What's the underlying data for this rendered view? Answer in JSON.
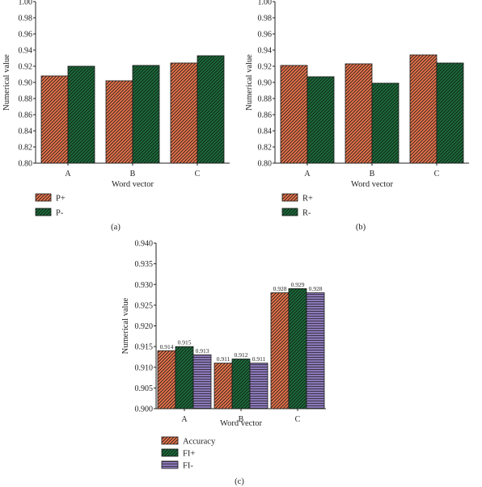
{
  "chart_data": [
    {
      "type": "bar",
      "panel_label": "(a)",
      "categories": [
        "A",
        "B",
        "C"
      ],
      "series": [
        {
          "name": "P+",
          "values": [
            0.908,
            0.902,
            0.924
          ],
          "color": "#e8734a",
          "pattern": "diagonal-hatch"
        },
        {
          "name": "P-",
          "values": [
            0.92,
            0.921,
            0.933
          ],
          "color": "#1e6b3c",
          "pattern": "diagonal-hatch"
        }
      ],
      "xlabel": "Word vector",
      "ylabel": "Numerical value",
      "ylim": [
        0.8,
        1.0
      ],
      "yticks": [
        "0.80",
        "0.82",
        "0.84",
        "0.86",
        "0.88",
        "0.90",
        "0.92",
        "0.94",
        "0.96",
        "0.98",
        "1.00"
      ],
      "legend_position": "bottom-left"
    },
    {
      "type": "bar",
      "panel_label": "(b)",
      "categories": [
        "A",
        "B",
        "C"
      ],
      "series": [
        {
          "name": "R+",
          "values": [
            0.921,
            0.923,
            0.934
          ],
          "color": "#e8734a",
          "pattern": "diagonal-hatch"
        },
        {
          "name": "R-",
          "values": [
            0.907,
            0.899,
            0.924
          ],
          "color": "#1e6b3c",
          "pattern": "diagonal-hatch"
        }
      ],
      "xlabel": "Word vector",
      "ylabel": "Numerical value",
      "ylim": [
        0.8,
        1.0
      ],
      "yticks": [
        "0.80",
        "0.82",
        "0.84",
        "0.86",
        "0.88",
        "0.90",
        "0.92",
        "0.94",
        "0.96",
        "0.98",
        "1.00"
      ],
      "legend_position": "bottom-left"
    },
    {
      "type": "bar",
      "panel_label": "(c)",
      "categories": [
        "A",
        "B",
        "C"
      ],
      "series": [
        {
          "name": "Accuracy",
          "values": [
            0.914,
            0.911,
            0.928
          ],
          "labels": [
            "0.914",
            "0.911",
            "0.928"
          ],
          "color": "#e8734a",
          "pattern": "diagonal-hatch"
        },
        {
          "name": "FI+",
          "values": [
            0.915,
            0.912,
            0.929
          ],
          "labels": [
            "0.915",
            "0.912",
            "0.929"
          ],
          "color": "#1e6b3c",
          "pattern": "diagonal-hatch"
        },
        {
          "name": "FI-",
          "values": [
            0.913,
            0.911,
            0.928
          ],
          "labels": [
            "0.913",
            "0.911",
            "0.928"
          ],
          "color": "#8b78b8",
          "pattern": "horizontal-hatch"
        }
      ],
      "xlabel": "Word vector",
      "ylabel": "Numerical value",
      "ylim": [
        0.9,
        0.94
      ],
      "yticks": [
        "0.900",
        "0.905",
        "0.910",
        "0.915",
        "0.920",
        "0.925",
        "0.930",
        "0.935",
        "0.940"
      ],
      "legend_position": "bottom-left"
    }
  ]
}
